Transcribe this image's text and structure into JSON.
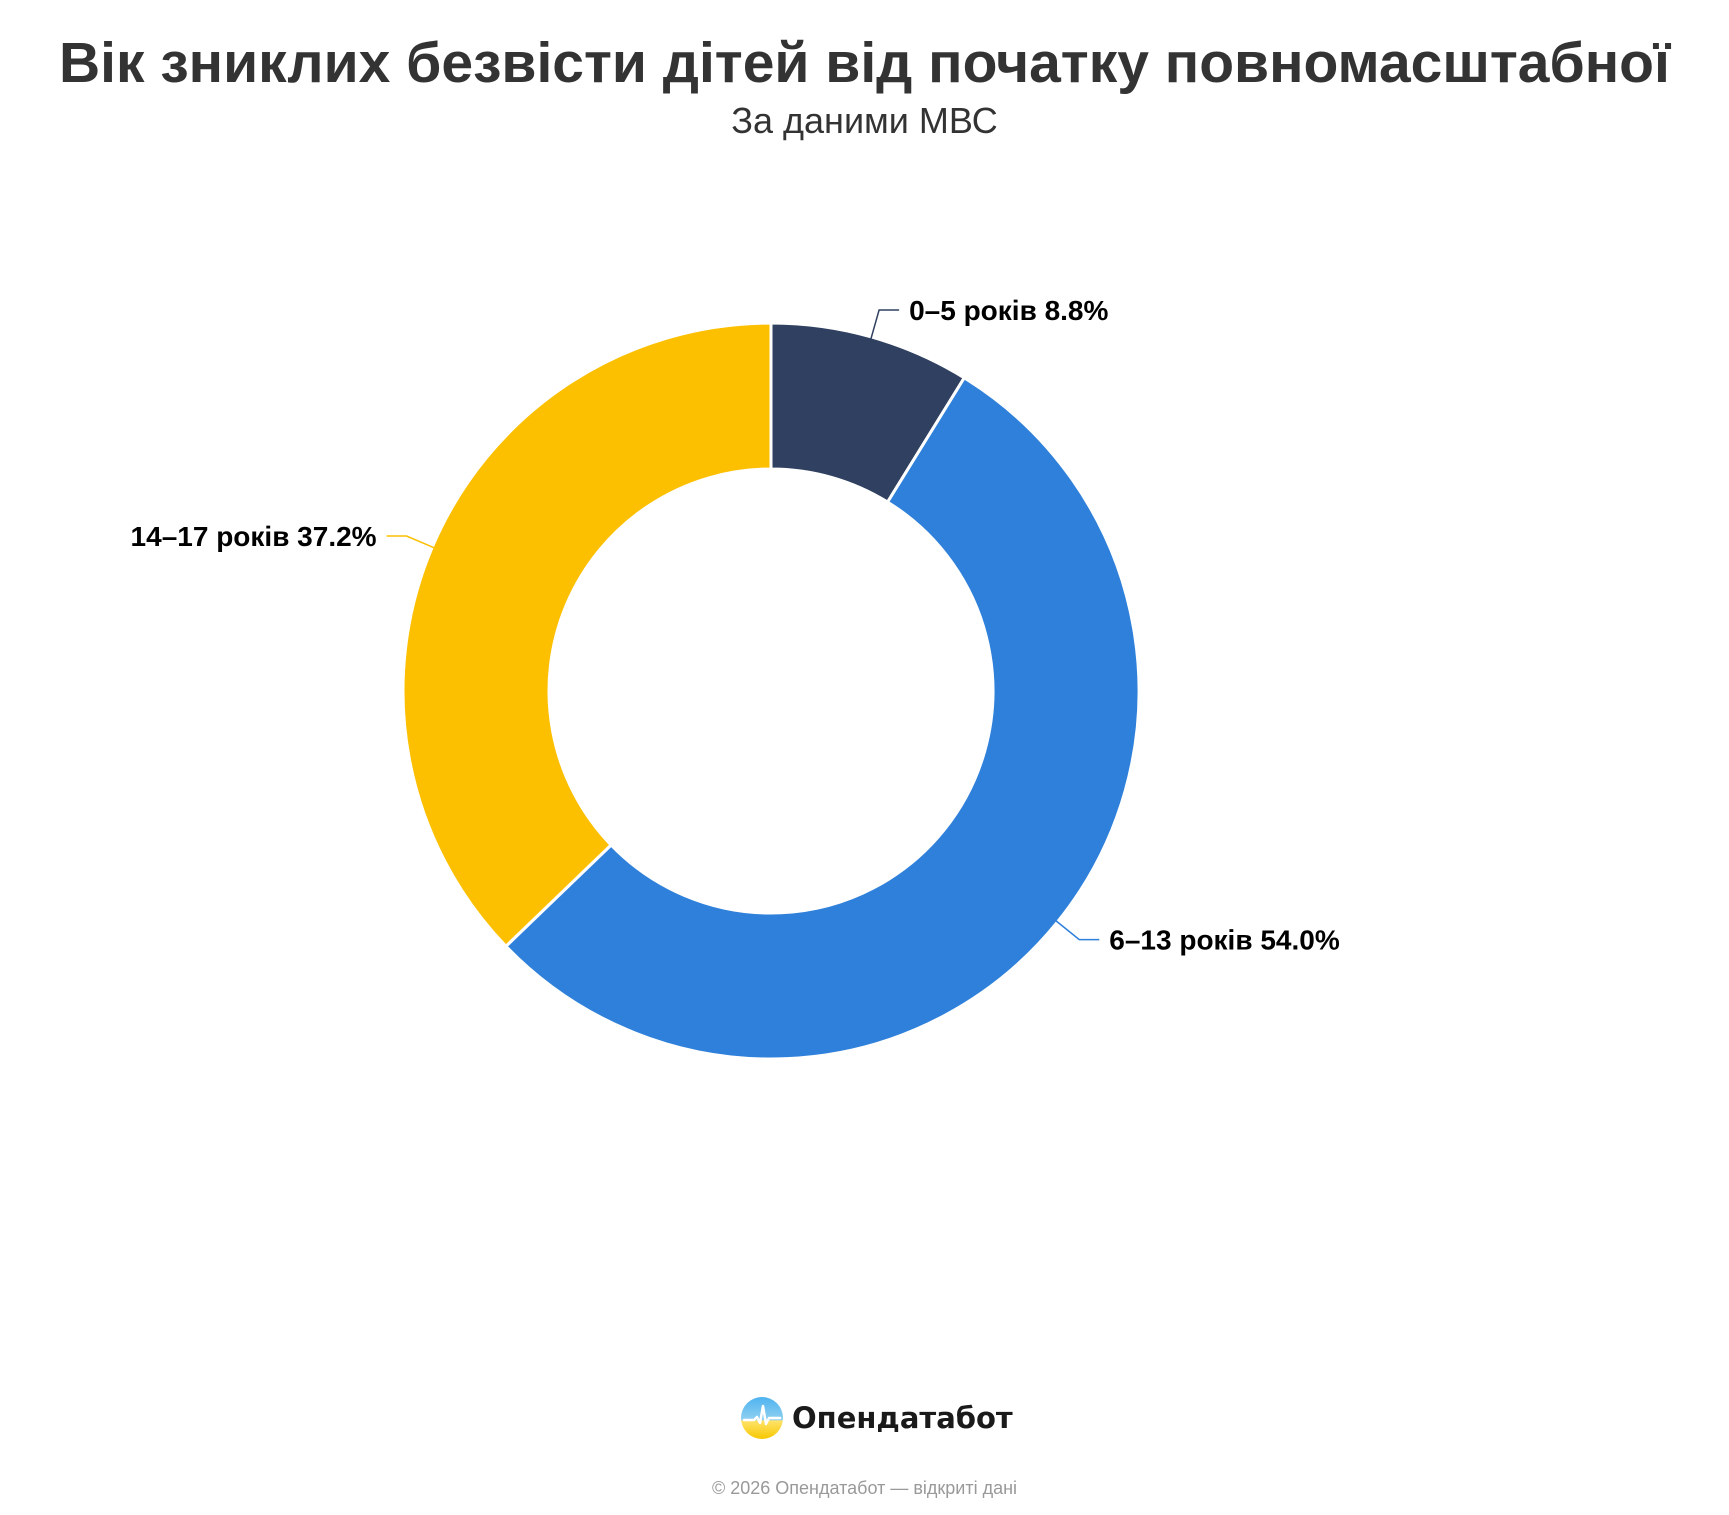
{
  "header": {
    "title": "Вік зниклих безвісти дітей від початку повномасштабної",
    "subtitle": "За даними МВС"
  },
  "chart_data": {
    "type": "pie",
    "variant": "donut",
    "title": "Вік зниклих безвісти дітей від початку повномасштабної",
    "subtitle": "За даними МВС",
    "slices": [
      {
        "name": "0–5 років",
        "value": 8.8,
        "label": "0–5 років 8.8%",
        "color": "#2F4060"
      },
      {
        "name": "6–13 років",
        "value": 54.0,
        "label": "6–13 років 54.0%",
        "color": "#2E80DA"
      },
      {
        "name": "14–17 років",
        "value": 37.2,
        "label": "14–17 років 37.2%",
        "color": "#FCC000"
      }
    ],
    "unit": "%",
    "legend": "none",
    "start": "top, clockwise"
  },
  "brand": {
    "name": "Опендатабот",
    "logo_icon": "opendatabot-logo-icon"
  },
  "credits": {
    "text": "© 2026 Опендатабот — відкриті дані"
  }
}
